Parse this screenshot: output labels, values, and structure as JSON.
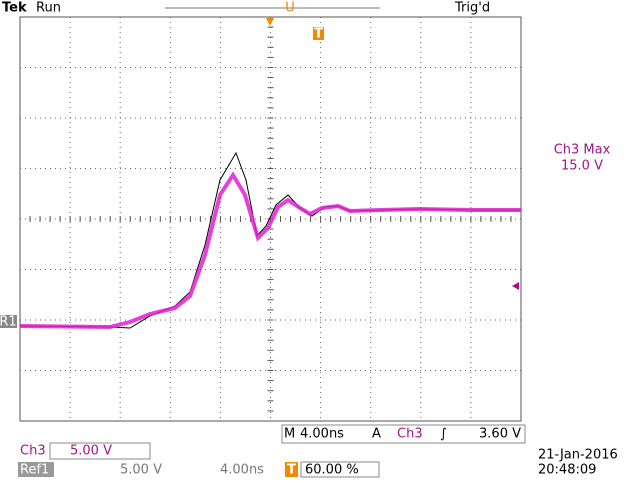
{
  "header": {
    "brand": "Tek",
    "state": "Run",
    "trigger_status": "Trig'd",
    "trigger_mark": "T",
    "position_mark": "U"
  },
  "measurement": {
    "label": "Ch3 Max",
    "value": "15.0 V"
  },
  "ref_marker": "R1",
  "timebase": {
    "prefix": "M",
    "value": "4.00ns"
  },
  "trigger": {
    "prefix": "A",
    "source": "Ch3",
    "slope": "∫",
    "level": "3.60 V"
  },
  "channel": {
    "name": "Ch3",
    "scale": "5.00 V"
  },
  "reference": {
    "name": "Ref1",
    "scale": "5.00 V",
    "time": "4.00ns",
    "trigger_mark": "T",
    "position": "60.00 %"
  },
  "datetime": {
    "date": "21-Jan-2016",
    "time": "20:48:09"
  }
}
